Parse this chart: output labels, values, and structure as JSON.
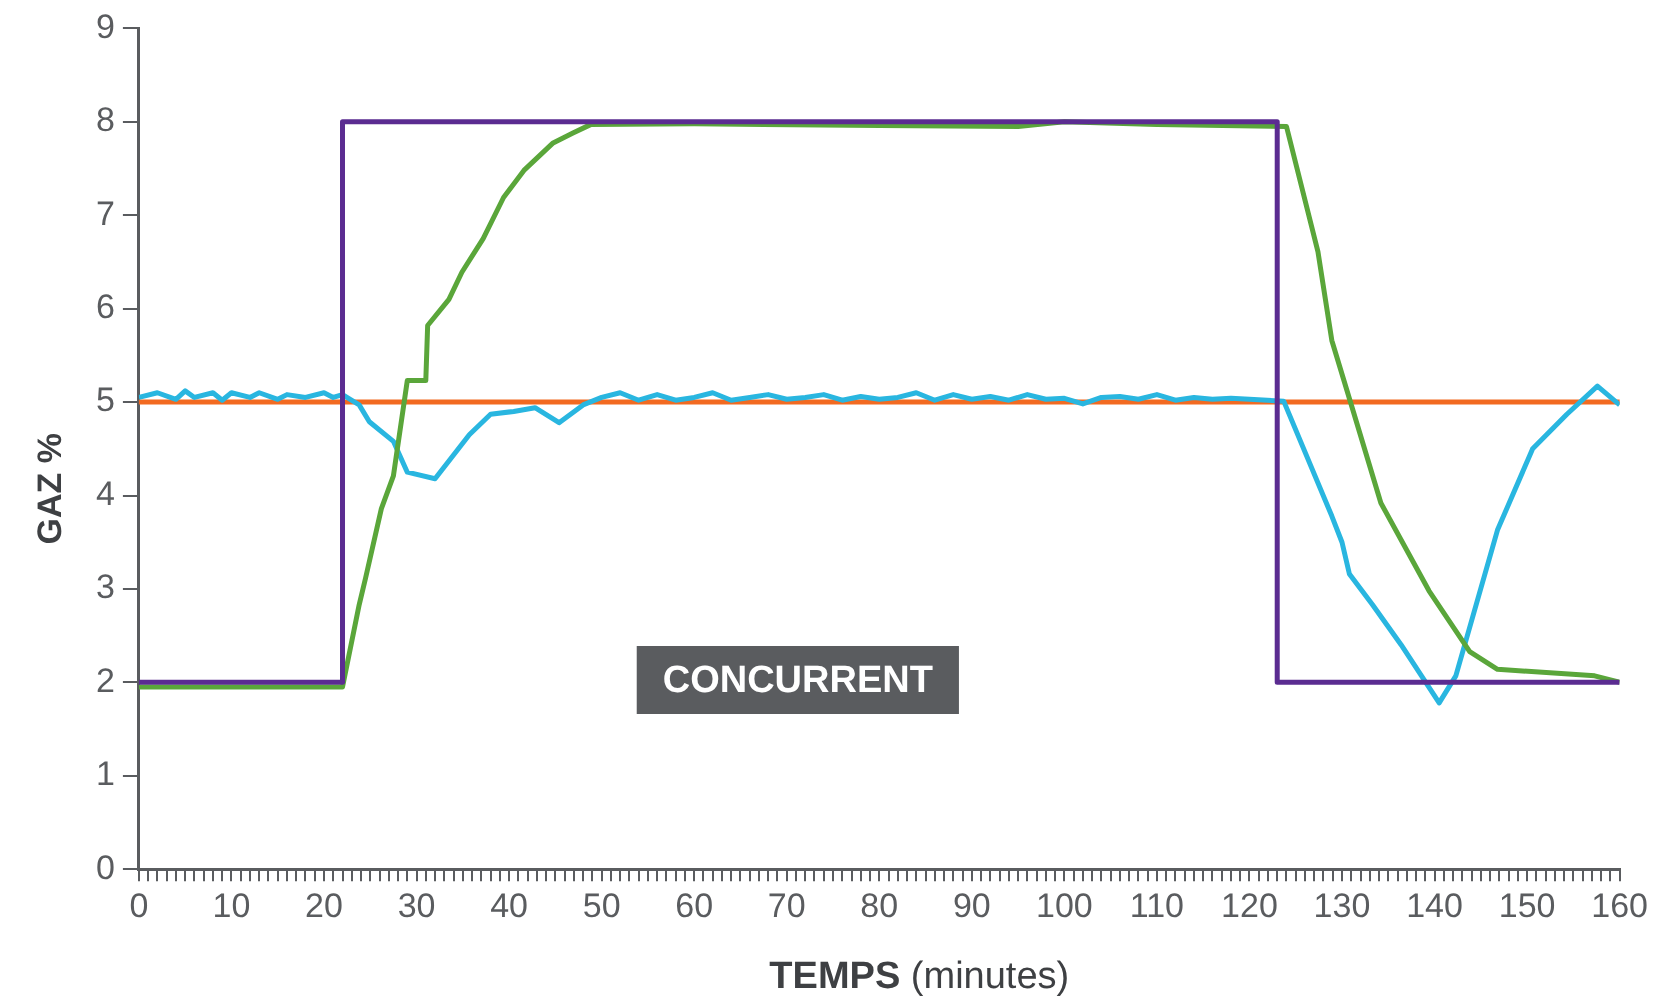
{
  "chart_data": {
    "type": "line",
    "xlabel": "TEMPS (minutes)",
    "ylabel": "GAZ %",
    "annotations": [
      "CONCURRENT"
    ],
    "xlim": [
      0,
      160
    ],
    "ylim": [
      0,
      9
    ],
    "yticks": [
      0,
      1,
      2,
      3,
      4,
      5,
      6,
      7,
      8,
      9
    ],
    "xticks": [
      0,
      {
        "value": 1,
        "label": null
      },
      {
        "value": 2,
        "label": null
      },
      {
        "value": 3,
        "label": null
      },
      {
        "value": 4,
        "label": null
      },
      {
        "value": 5,
        "label": null
      },
      {
        "value": 6,
        "label": null
      },
      {
        "value": 7,
        "label": null
      },
      {
        "value": 8,
        "label": null
      },
      {
        "value": 9,
        "label": null
      },
      10,
      {
        "value": 11,
        "label": null
      },
      {
        "value": 12,
        "label": null
      },
      {
        "value": 13,
        "label": null
      },
      {
        "value": 14,
        "label": null
      },
      {
        "value": 15,
        "label": null
      },
      {
        "value": 16,
        "label": null
      },
      {
        "value": 17,
        "label": null
      },
      {
        "value": 18,
        "label": null
      },
      {
        "value": 19,
        "label": null
      },
      20,
      {
        "value": 21,
        "label": null
      },
      {
        "value": 22,
        "label": null
      },
      {
        "value": 23,
        "label": null
      },
      {
        "value": 24,
        "label": null
      },
      {
        "value": 25,
        "label": null
      },
      {
        "value": 26,
        "label": null
      },
      {
        "value": 27,
        "label": null
      },
      {
        "value": 28,
        "label": null
      },
      {
        "value": 29,
        "label": null
      },
      30,
      {
        "value": 31,
        "label": null
      },
      {
        "value": 32,
        "label": null
      },
      {
        "value": 33,
        "label": null
      },
      {
        "value": 34,
        "label": null
      },
      {
        "value": 35,
        "label": null
      },
      {
        "value": 36,
        "label": null
      },
      {
        "value": 37,
        "label": null
      },
      {
        "value": 38,
        "label": null
      },
      {
        "value": 39,
        "label": null
      },
      40,
      {
        "value": 41,
        "label": null
      },
      {
        "value": 42,
        "label": null
      },
      {
        "value": 43,
        "label": null
      },
      {
        "value": 44,
        "label": null
      },
      {
        "value": 45,
        "label": null
      },
      {
        "value": 46,
        "label": null
      },
      {
        "value": 47,
        "label": null
      },
      {
        "value": 48,
        "label": null
      },
      {
        "value": 49,
        "label": null
      },
      50,
      {
        "value": 51,
        "label": null
      },
      {
        "value": 52,
        "label": null
      },
      {
        "value": 53,
        "label": null
      },
      {
        "value": 54,
        "label": null
      },
      {
        "value": 55,
        "label": null
      },
      {
        "value": 56,
        "label": null
      },
      {
        "value": 57,
        "label": null
      },
      {
        "value": 58,
        "label": null
      },
      {
        "value": 59,
        "label": null
      },
      60,
      {
        "value": 61,
        "label": null
      },
      {
        "value": 62,
        "label": null
      },
      {
        "value": 63,
        "label": null
      },
      {
        "value": 64,
        "label": null
      },
      {
        "value": 65,
        "label": null
      },
      {
        "value": 66,
        "label": null
      },
      {
        "value": 67,
        "label": null
      },
      {
        "value": 68,
        "label": null
      },
      {
        "value": 69,
        "label": null
      },
      70,
      {
        "value": 71,
        "label": null
      },
      {
        "value": 72,
        "label": null
      },
      {
        "value": 73,
        "label": null
      },
      {
        "value": 74,
        "label": null
      },
      {
        "value": 75,
        "label": null
      },
      {
        "value": 76,
        "label": null
      },
      {
        "value": 77,
        "label": null
      },
      {
        "value": 78,
        "label": null
      },
      {
        "value": 79,
        "label": null
      },
      80,
      {
        "value": 81,
        "label": null
      },
      {
        "value": 82,
        "label": null
      },
      {
        "value": 83,
        "label": null
      },
      {
        "value": 84,
        "label": null
      },
      {
        "value": 85,
        "label": null
      },
      {
        "value": 86,
        "label": null
      },
      {
        "value": 87,
        "label": null
      },
      {
        "value": 88,
        "label": null
      },
      {
        "value": 89,
        "label": null
      },
      90,
      {
        "value": 91,
        "label": null
      },
      {
        "value": 92,
        "label": null
      },
      {
        "value": 93,
        "label": null
      },
      {
        "value": 94,
        "label": null
      },
      {
        "value": 95,
        "label": null
      },
      {
        "value": 96,
        "label": null
      },
      {
        "value": 97,
        "label": null
      },
      {
        "value": 98,
        "label": null
      },
      {
        "value": 99,
        "label": null
      },
      100,
      {
        "value": 101,
        "label": null
      },
      {
        "value": 102,
        "label": null
      },
      {
        "value": 103,
        "label": null
      },
      {
        "value": 104,
        "label": null
      },
      {
        "value": 105,
        "label": null
      },
      {
        "value": 106,
        "label": null
      },
      {
        "value": 107,
        "label": null
      },
      {
        "value": 108,
        "label": null
      },
      {
        "value": 109,
        "label": null
      },
      110,
      {
        "value": 111,
        "label": null
      },
      {
        "value": 112,
        "label": null
      },
      {
        "value": 113,
        "label": null
      },
      {
        "value": 114,
        "label": null
      },
      {
        "value": 115,
        "label": null
      },
      {
        "value": 116,
        "label": null
      },
      {
        "value": 117,
        "label": null
      },
      {
        "value": 118,
        "label": null
      },
      {
        "value": 119,
        "label": null
      },
      120,
      {
        "value": 121,
        "label": null
      },
      {
        "value": 122,
        "label": null
      },
      {
        "value": 123,
        "label": null
      },
      {
        "value": 124,
        "label": null
      },
      {
        "value": 125,
        "label": null
      },
      {
        "value": 126,
        "label": null
      },
      {
        "value": 127,
        "label": null
      },
      {
        "value": 128,
        "label": null
      },
      {
        "value": 129,
        "label": null
      },
      130,
      {
        "value": 131,
        "label": null
      },
      {
        "value": 132,
        "label": null
      },
      {
        "value": 133,
        "label": null
      },
      {
        "value": 134,
        "label": null
      },
      {
        "value": 135,
        "label": null
      },
      {
        "value": 136,
        "label": null
      },
      {
        "value": 137,
        "label": null
      },
      {
        "value": 138,
        "label": null
      },
      {
        "value": 139,
        "label": null
      },
      140,
      {
        "value": 141,
        "label": null
      },
      {
        "value": 142,
        "label": null
      },
      {
        "value": 143,
        "label": null
      },
      {
        "value": 144,
        "label": null
      },
      {
        "value": 145,
        "label": null
      },
      {
        "value": 146,
        "label": null
      },
      {
        "value": 147,
        "label": null
      },
      {
        "value": 148,
        "label": null
      },
      {
        "value": 149,
        "label": null
      },
      150,
      {
        "value": 151,
        "label": null
      },
      {
        "value": 152,
        "label": null
      },
      {
        "value": 153,
        "label": null
      },
      {
        "value": 154,
        "label": null
      },
      {
        "value": 155,
        "label": null
      },
      {
        "value": 156,
        "label": null
      },
      {
        "value": 157,
        "label": null
      },
      {
        "value": 158,
        "label": null
      },
      {
        "value": 159,
        "label": null
      },
      160
    ],
    "ref_lines": [
      {
        "axis": "y",
        "value": 5,
        "color": "#f26a21"
      }
    ],
    "series": [
      {
        "type": "step",
        "color": "#5b2c91",
        "x": [
          0,
          22,
          123,
          160
        ],
        "values": [
          2,
          8,
          2,
          2
        ]
      },
      {
        "color": "#5aa63a",
        "x": [
          0,
          22,
          23.8,
          24.5,
          26.2,
          27.5,
          29,
          31,
          31.2,
          33.5,
          34.9,
          37.2,
          39.4,
          41.6,
          44.7,
          46.9,
          48.8,
          60,
          80,
          95,
          100,
          110,
          124,
          127.4,
          128.9,
          131.1,
          134.2,
          139.4,
          143.8,
          146.8,
          157.3,
          160
        ],
        "values": [
          1.95,
          1.95,
          2.83,
          3.12,
          3.86,
          4.21,
          5.23,
          5.23,
          5.82,
          6.1,
          6.39,
          6.75,
          7.19,
          7.48,
          7.77,
          7.88,
          7.97,
          7.98,
          7.96,
          7.95,
          8,
          7.97,
          7.95,
          6.61,
          5.66,
          4.94,
          3.92,
          2.98,
          2.33,
          2.14,
          2.07,
          2
        ]
      },
      {
        "color": "#29b6e0",
        "x": [
          0,
          2,
          4,
          5,
          6,
          8,
          9,
          10,
          12,
          13,
          15,
          16,
          18,
          20,
          21,
          22,
          23.8,
          24.9,
          27.5,
          29,
          32,
          35.7,
          38,
          40.5,
          42.8,
          45.4,
          48,
          50,
          52,
          54,
          56,
          58,
          60,
          62,
          64,
          66,
          68,
          70,
          72,
          74,
          76,
          78,
          80,
          82,
          84,
          86,
          88,
          90,
          92,
          94,
          96,
          98,
          100,
          102,
          104,
          106,
          108,
          110,
          112,
          114,
          116,
          118,
          120,
          123.7,
          128.9,
          130,
          130.8,
          133.3,
          136.4,
          140.5,
          142.3,
          146.8,
          150.6,
          154.3,
          157.6,
          160
        ],
        "values": [
          5.05,
          5.1,
          5.03,
          5.12,
          5.05,
          5.1,
          5.02,
          5.1,
          5.05,
          5.1,
          5.03,
          5.08,
          5.05,
          5.1,
          5.05,
          5.08,
          4.97,
          4.79,
          4.58,
          4.25,
          4.18,
          4.65,
          4.87,
          4.9,
          4.94,
          4.78,
          4.97,
          5.05,
          5.1,
          5.02,
          5.08,
          5.02,
          5.05,
          5.1,
          5.02,
          5.05,
          5.08,
          5.03,
          5.05,
          5.08,
          5.02,
          5.06,
          5.03,
          5.05,
          5.1,
          5.02,
          5.08,
          5.03,
          5.06,
          5.02,
          5.08,
          5.03,
          5.04,
          4.98,
          5.05,
          5.06,
          5.03,
          5.08,
          5.02,
          5.05,
          5.03,
          5.04,
          5.03,
          5.01,
          3.78,
          3.5,
          3.16,
          2.83,
          2.4,
          1.78,
          2.07,
          3.63,
          4.5,
          4.87,
          5.17,
          4.97
        ]
      }
    ]
  }
}
